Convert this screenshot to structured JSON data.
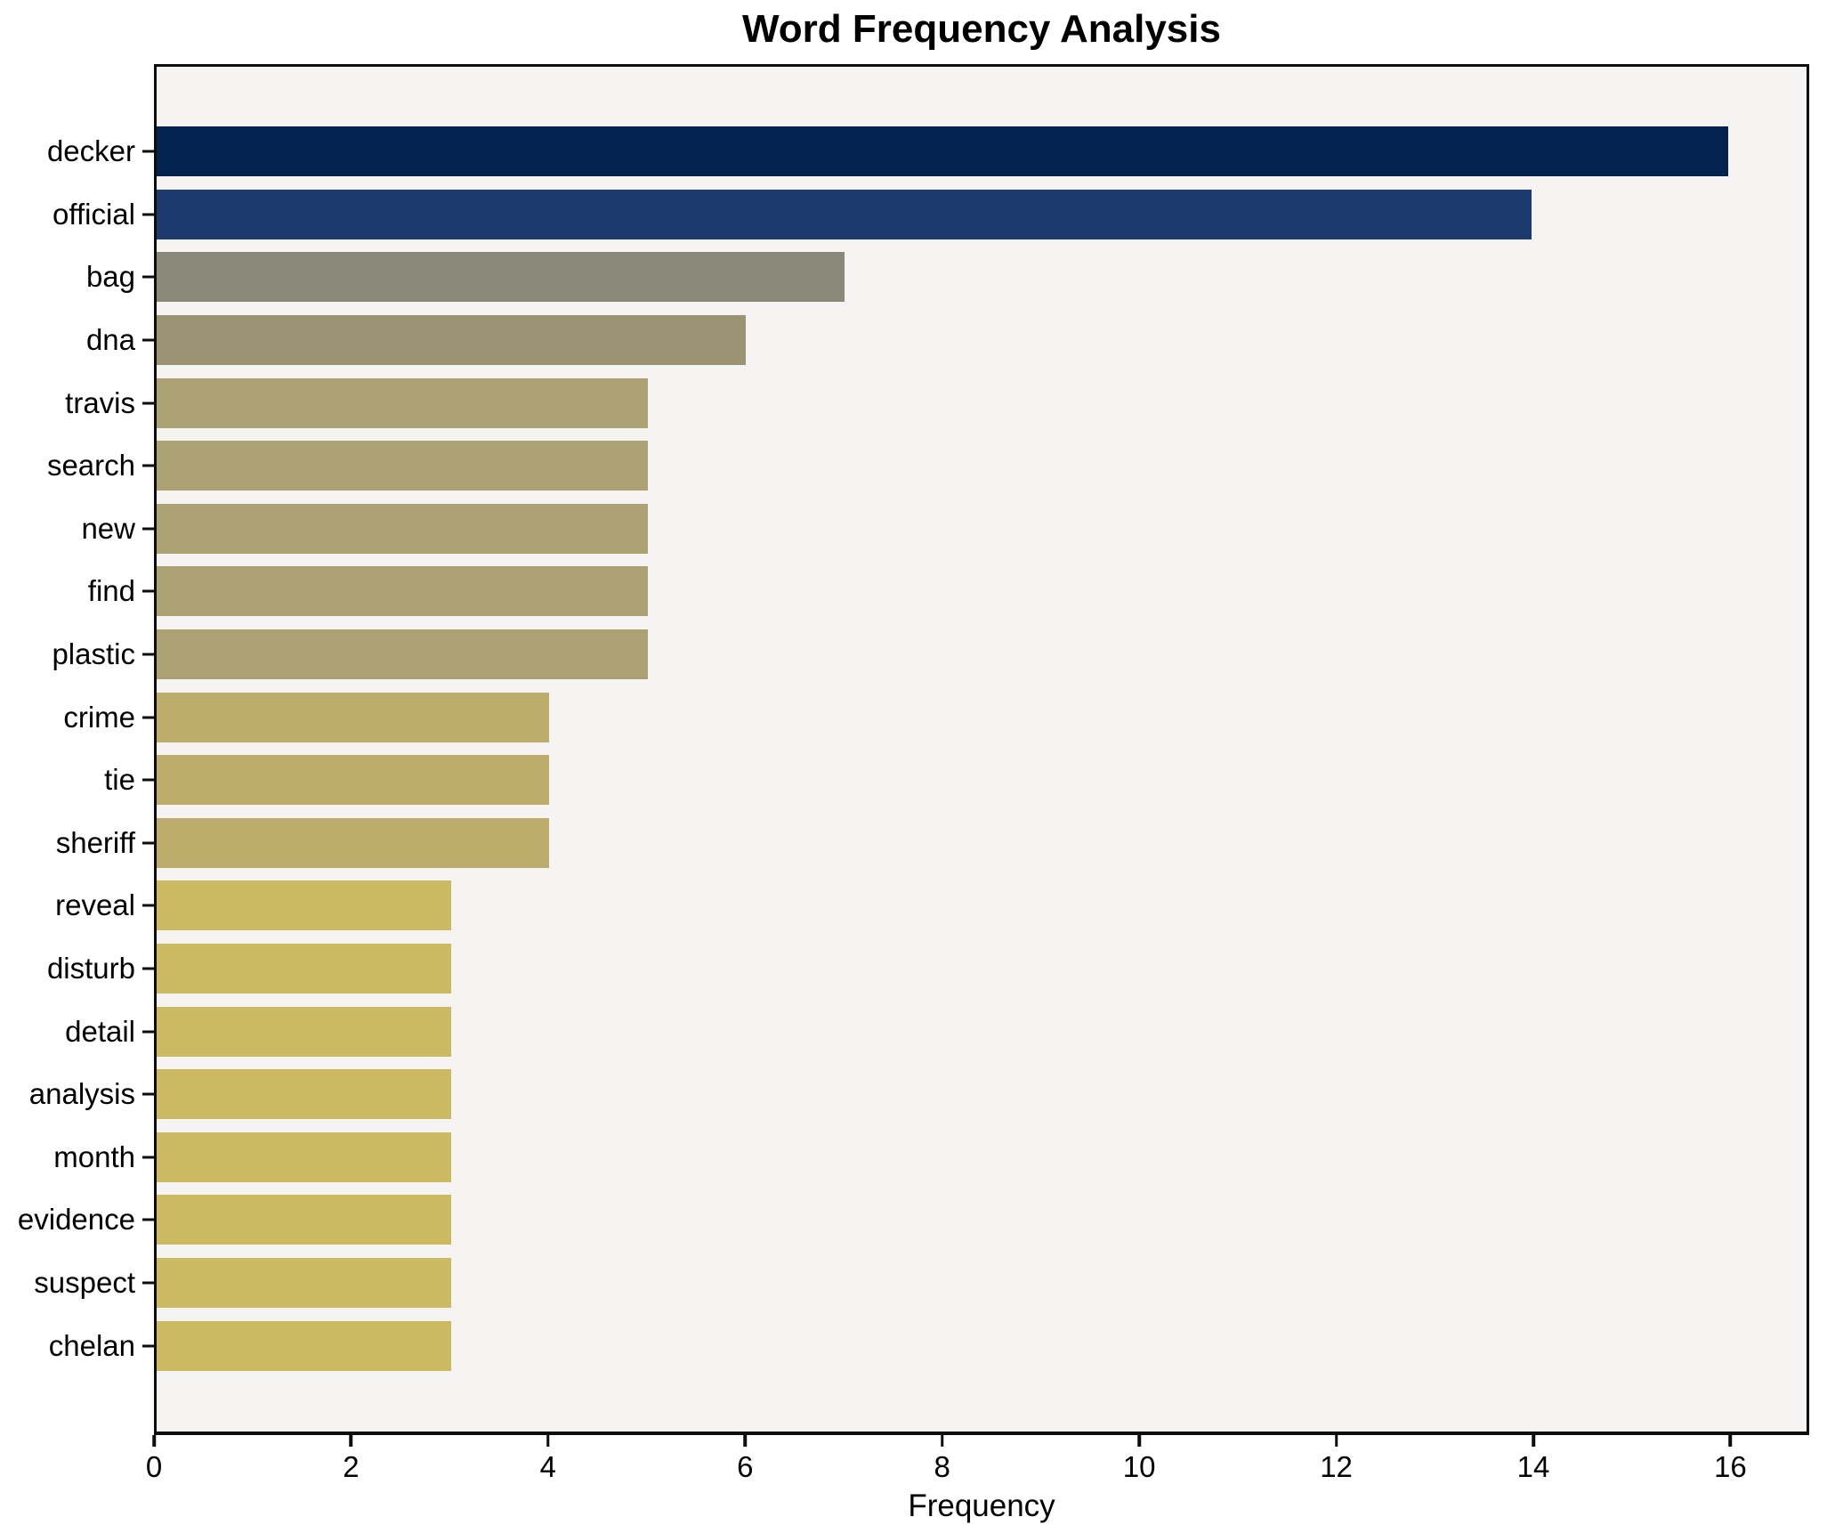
{
  "chart_data": {
    "type": "bar",
    "orientation": "horizontal",
    "title": "Word Frequency Analysis",
    "xlabel": "Frequency",
    "ylabel": "",
    "categories": [
      "decker",
      "official",
      "bag",
      "dna",
      "travis",
      "search",
      "new",
      "find",
      "plastic",
      "crime",
      "tie",
      "sheriff",
      "reveal",
      "disturb",
      "detail",
      "analysis",
      "month",
      "evidence",
      "suspect",
      "chelan"
    ],
    "values": [
      16,
      14,
      7,
      6,
      5,
      5,
      5,
      5,
      5,
      4,
      4,
      4,
      3,
      3,
      3,
      3,
      3,
      3,
      3,
      3
    ],
    "bar_colors": [
      "#02234d",
      "#1d3a6e",
      "#8a8878",
      "#9a9374",
      "#aba172",
      "#aba172",
      "#aba172",
      "#aba172",
      "#aba172",
      "#bcad6c",
      "#bcad6c",
      "#bcad6c",
      "#ccba62",
      "#ccba62",
      "#ccba62",
      "#ccba62",
      "#ccba62",
      "#ccba62",
      "#ccba62",
      "#ccba62"
    ],
    "xlim": [
      0,
      16.8
    ],
    "xticks": [
      0,
      2,
      4,
      6,
      8,
      10,
      12,
      14,
      16
    ],
    "grid": false,
    "legend": "none",
    "plot_background": "#f5f4f2",
    "figure_background": "#ffffff",
    "spine_color": "#0d0d0d",
    "text_color": "#000000"
  }
}
